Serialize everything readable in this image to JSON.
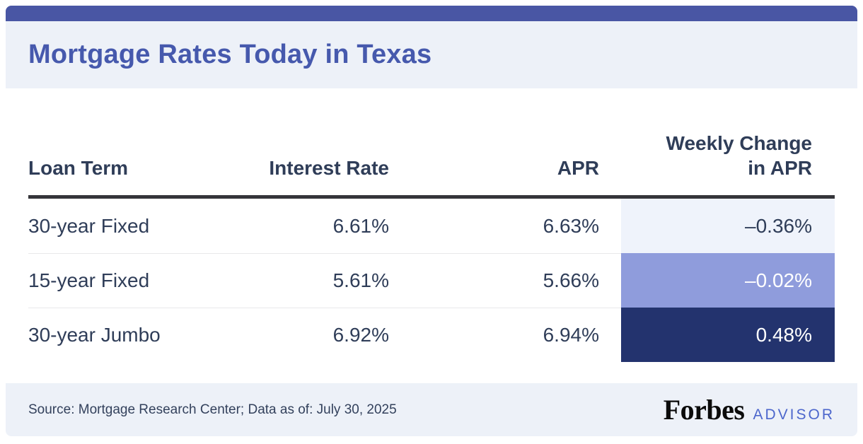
{
  "header": {
    "title": "Mortgage Rates Today in Texas"
  },
  "table": {
    "columns": {
      "loan_term": "Loan Term",
      "interest_rate": "Interest Rate",
      "apr": "APR",
      "weekly_change_line1": "Weekly Change",
      "weekly_change_line2": "in APR"
    },
    "rows": [
      {
        "loan_term": "30-year Fixed",
        "interest_rate": "6.61%",
        "apr": "6.63%",
        "weekly_change": "–0.36%",
        "cell_bg": "#EFF3FB",
        "cell_text": "#2F3D58"
      },
      {
        "loan_term": "15-year Fixed",
        "interest_rate": "5.61%",
        "apr": "5.66%",
        "weekly_change": "–0.02%",
        "cell_bg": "#8F9CDC",
        "cell_text": "#FFFFFF"
      },
      {
        "loan_term": "30-year Jumbo",
        "interest_rate": "6.92%",
        "apr": "6.94%",
        "weekly_change": "0.48%",
        "cell_bg": "#23336E",
        "cell_text": "#FFFFFF"
      }
    ]
  },
  "footer": {
    "source": "Source: Mortgage Research Center; Data as of: July 30, 2025",
    "brand_forbes": "Forbes",
    "brand_advisor": "ADVISOR"
  },
  "colors": {
    "accent_bar": "#4956A4",
    "band_background": "#EDF1F8",
    "title_text": "#4659AD",
    "table_text": "#2F3D58",
    "header_rule": "#35353A",
    "row_divider": "#E8E8EA",
    "wc_light": "#EFF3FB",
    "wc_medium": "#8F9CDC",
    "wc_dark": "#23336E",
    "advisor_blue": "#4C66CC"
  },
  "chart_data": {
    "type": "table",
    "title": "Mortgage Rates Today in Texas",
    "columns": [
      "Loan Term",
      "Interest Rate",
      "APR",
      "Weekly Change in APR"
    ],
    "rows": [
      [
        "30-year Fixed",
        "6.61%",
        "6.63%",
        "-0.36%"
      ],
      [
        "15-year Fixed",
        "5.61%",
        "5.66%",
        "-0.02%"
      ],
      [
        "30-year Jumbo",
        "6.92%",
        "6.94%",
        "0.48%"
      ]
    ],
    "highlight_column": "Weekly Change in APR",
    "highlight_colors": [
      "#EFF3FB",
      "#8F9CDC",
      "#23336E"
    ],
    "source": "Source: Mortgage Research Center; Data as of: July 30, 2025"
  }
}
